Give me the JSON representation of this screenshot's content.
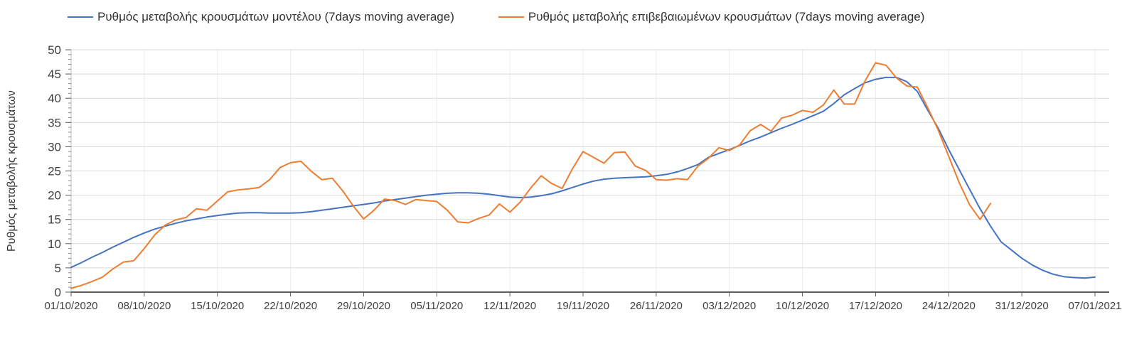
{
  "chart_data": {
    "type": "line",
    "title": "",
    "xlabel": "",
    "ylabel": "Ρυθμός μεταβολής κρουσμάτων",
    "ylim": [
      0,
      50
    ],
    "y_ticks": [
      0,
      5,
      10,
      15,
      20,
      25,
      30,
      35,
      40,
      45,
      50
    ],
    "y_minor_tick_step": 1,
    "grid": "horizontal major + faint weekly vertical",
    "legend_position": "top",
    "x_step_days": 1,
    "x_tick_labels": [
      "01/10/2020",
      "08/10/2020",
      "15/10/2020",
      "22/10/2020",
      "29/10/2020",
      "05/11/2020",
      "12/11/2020",
      "19/11/2020",
      "26/11/2020",
      "03/12/2020",
      "10/12/2020",
      "17/12/2020",
      "24/12/2020",
      "31/12/2020",
      "07/01/2021"
    ],
    "axis_color": "#262626",
    "gridline_color": "#d9d9d9",
    "minor_gridline_color": "#ededed",
    "tick_label_color": "#404040",
    "series": [
      {
        "name": "Ρυθμός μεταβολής κρουσμάτων μοντέλου (7days moving average)",
        "color": "#4472C4",
        "start_date": "01/10/2020",
        "end_date": "07/01/2021",
        "values": [
          5.1,
          6.1,
          7.2,
          8.2,
          9.3,
          10.3,
          11.3,
          12.2,
          13.0,
          13.6,
          14.2,
          14.7,
          15.1,
          15.5,
          15.8,
          16.1,
          16.3,
          16.4,
          16.4,
          16.3,
          16.3,
          16.3,
          16.4,
          16.6,
          16.9,
          17.2,
          17.5,
          17.8,
          18.1,
          18.4,
          18.8,
          19.1,
          19.4,
          19.7,
          20.0,
          20.2,
          20.4,
          20.5,
          20.5,
          20.4,
          20.2,
          19.9,
          19.6,
          19.5,
          19.6,
          19.9,
          20.3,
          20.9,
          21.6,
          22.3,
          22.9,
          23.3,
          23.5,
          23.6,
          23.7,
          23.8,
          24.0,
          24.3,
          24.8,
          25.5,
          26.3,
          27.8,
          28.6,
          29.4,
          30.3,
          31.2,
          32.0,
          32.9,
          33.8,
          34.6,
          35.5,
          36.4,
          37.3,
          38.9,
          40.7,
          42.0,
          43.2,
          43.9,
          44.3,
          44.3,
          43.4,
          41.4,
          37.5,
          33.8,
          29.4,
          25.3,
          21.2,
          17.2,
          13.6,
          10.4,
          8.7,
          7.0,
          5.6,
          4.5,
          3.7,
          3.2,
          3.0,
          2.9,
          3.1
        ]
      },
      {
        "name": "Ρυθμός μεταβολής επιβεβαιωμένων κρουσμάτων (7days moving average)",
        "color": "#ED7D31",
        "start_date": "01/10/2020",
        "end_date": "28/12/2020",
        "values": [
          0.8,
          1.4,
          2.2,
          3.1,
          4.8,
          6.2,
          6.5,
          9.0,
          11.8,
          13.8,
          14.9,
          15.4,
          17.2,
          16.9,
          18.8,
          20.7,
          21.1,
          21.3,
          21.6,
          23.2,
          25.7,
          26.7,
          27.0,
          24.9,
          23.2,
          23.5,
          20.9,
          17.8,
          15.1,
          16.9,
          19.2,
          18.9,
          18.1,
          19.1,
          18.9,
          18.7,
          16.9,
          14.5,
          14.3,
          15.2,
          15.9,
          18.2,
          16.5,
          18.6,
          21.5,
          24.0,
          22.4,
          21.4,
          25.5,
          29.0,
          27.8,
          26.6,
          28.8,
          28.9,
          26.0,
          25.1,
          23.2,
          23.1,
          23.4,
          23.2,
          26.0,
          27.6,
          29.8,
          29.2,
          30.4,
          33.3,
          34.6,
          33.2,
          35.9,
          36.5,
          37.5,
          37.1,
          38.6,
          41.7,
          38.8,
          38.8,
          43.6,
          47.3,
          46.8,
          44.2,
          42.5,
          42.3,
          38.0,
          33.4,
          28.0,
          22.6,
          18.0,
          15.0,
          18.3
        ]
      }
    ]
  }
}
